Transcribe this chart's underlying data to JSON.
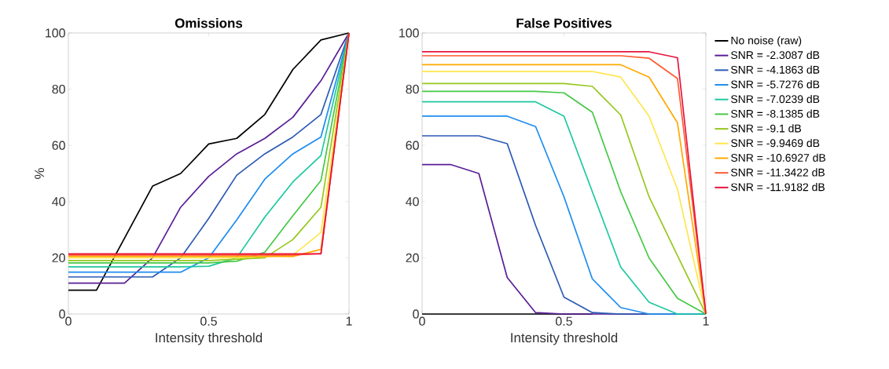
{
  "chart_data": [
    {
      "type": "line",
      "title": "Omissions",
      "xlabel": "Intensity threshold",
      "ylabel": "%",
      "x": [
        0,
        0.1,
        0.2,
        0.3,
        0.4,
        0.5,
        0.6,
        0.7,
        0.8,
        0.9,
        1
      ],
      "xlim": [
        0,
        1
      ],
      "ylim": [
        0,
        100
      ],
      "xticks": [
        0,
        0.5,
        1
      ],
      "yticks": [
        0,
        20,
        40,
        60,
        80,
        100
      ],
      "series": [
        {
          "color": "#000000",
          "values": [
            8.5,
            8.5,
            27,
            45.5,
            50,
            60.5,
            62.5,
            71,
            87,
            97.5,
            100
          ]
        },
        {
          "color": "#5a1e96",
          "values": [
            11,
            11,
            11,
            20,
            38,
            49,
            57,
            62.5,
            70,
            83,
            100
          ]
        },
        {
          "color": "#2c5ab4",
          "values": [
            13.2,
            13.2,
            13.2,
            13.2,
            20,
            34,
            49.4,
            57,
            63,
            71,
            100
          ]
        },
        {
          "color": "#1e8cf0",
          "values": [
            14.9,
            14.9,
            14.9,
            14.9,
            14.9,
            20,
            33.5,
            48,
            57,
            63,
            100
          ]
        },
        {
          "color": "#1ec8a0",
          "values": [
            16.8,
            16.8,
            16.8,
            16.8,
            16.8,
            17,
            20,
            34.5,
            47,
            56.4,
            100
          ]
        },
        {
          "color": "#46c846",
          "values": [
            18.2,
            18.2,
            18.2,
            18.2,
            18.2,
            18.2,
            18.8,
            22,
            35,
            47.5,
            100
          ]
        },
        {
          "color": "#96c81e",
          "values": [
            19,
            19,
            19,
            19,
            19,
            19,
            19.5,
            20,
            26.5,
            38,
            100
          ]
        },
        {
          "color": "#ffe650",
          "values": [
            20,
            20,
            20,
            20,
            20,
            20,
            20,
            20.5,
            21,
            29,
            100
          ]
        },
        {
          "color": "#ffaa00",
          "values": [
            20.5,
            20.5,
            20.5,
            20.5,
            20.5,
            20.5,
            20.5,
            20.5,
            20.5,
            23,
            100
          ]
        },
        {
          "color": "#ff5a32",
          "values": [
            21,
            21,
            21,
            21,
            21,
            21,
            21,
            21,
            21,
            21.5,
            100
          ]
        },
        {
          "color": "#e6143c",
          "values": [
            21.4,
            21.4,
            21.4,
            21.4,
            21.4,
            21.4,
            21.4,
            21.4,
            21.4,
            21.4,
            100
          ]
        }
      ]
    },
    {
      "type": "line",
      "title": "False Positives",
      "xlabel": "Intensity threshold",
      "legend": "right",
      "x": [
        0,
        0.1,
        0.2,
        0.3,
        0.4,
        0.5,
        0.6,
        0.7,
        0.8,
        0.9,
        1
      ],
      "xlim": [
        0,
        1
      ],
      "ylim": [
        0,
        100
      ],
      "xticks": [
        0,
        0.5,
        1
      ],
      "yticks": [
        0,
        20,
        40,
        60,
        80,
        100
      ],
      "series": [
        {
          "name": "No noise (raw)",
          "color": "#000000",
          "values": [
            0,
            0,
            0,
            0,
            0,
            0,
            0,
            null,
            null,
            null,
            null
          ]
        },
        {
          "name": "SNR = -2.3087 dB",
          "color": "#5a1e96",
          "values": [
            53.2,
            53.2,
            50,
            13,
            0.5,
            0,
            0,
            0,
            0,
            null,
            null
          ]
        },
        {
          "name": "SNR = -4.1863 dB",
          "color": "#2c5ab4",
          "values": [
            63.4,
            63.4,
            63.4,
            60.6,
            31.5,
            6,
            0.5,
            0,
            0,
            0,
            0
          ]
        },
        {
          "name": "SNR = -5.7276 dB",
          "color": "#1e8cf0",
          "values": [
            70.4,
            70.4,
            70.4,
            70.4,
            66.7,
            41.7,
            12.5,
            2.3,
            0,
            0,
            0
          ]
        },
        {
          "name": "SNR = -7.0239 dB",
          "color": "#1ec8a0",
          "values": [
            75.5,
            75.5,
            75.5,
            75.5,
            75.5,
            70.4,
            43.5,
            16.7,
            4.2,
            0,
            0
          ]
        },
        {
          "name": "SNR = -8.1385 dB",
          "color": "#46c846",
          "values": [
            79.2,
            79.2,
            79.2,
            79.2,
            79.2,
            78.7,
            71.8,
            43.5,
            19.9,
            5.6,
            0
          ]
        },
        {
          "name": "SNR = -9.1 dB",
          "color": "#96c81e",
          "values": [
            82,
            82,
            82,
            82,
            82,
            82,
            81,
            70.8,
            41.7,
            20.8,
            0
          ]
        },
        {
          "name": "SNR = -9.9469 dB",
          "color": "#ffe650",
          "values": [
            86.3,
            86.3,
            86.3,
            86.3,
            86.3,
            86.3,
            86.3,
            84.3,
            70.4,
            44.4,
            0
          ]
        },
        {
          "name": "SNR = -10.6927 dB",
          "color": "#ffaa00",
          "values": [
            88.7,
            88.7,
            88.7,
            88.7,
            88.7,
            88.7,
            88.7,
            88.7,
            84.3,
            68,
            0
          ]
        },
        {
          "name": "SNR = -11.3422 dB",
          "color": "#ff5a32",
          "values": [
            91.9,
            91.9,
            91.9,
            91.9,
            91.9,
            91.9,
            91.9,
            91.9,
            91,
            83.8,
            0
          ]
        },
        {
          "name": "SNR = -11.9182 dB",
          "color": "#e6143c",
          "values": [
            93.3,
            93.3,
            93.3,
            93.3,
            93.3,
            93.3,
            93.3,
            93.3,
            93.3,
            91.2,
            0
          ]
        }
      ]
    }
  ]
}
